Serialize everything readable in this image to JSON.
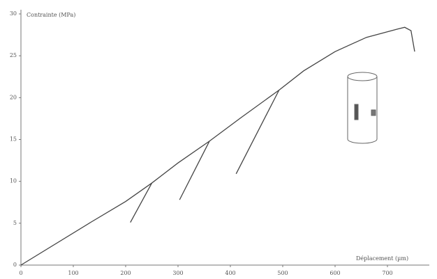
{
  "chart_data": {
    "type": "line",
    "y_label": "Contrainte (MPa)",
    "x_label": "Déplacement (µm)",
    "xlim": [
      0,
      780
    ],
    "ylim": [
      0,
      30
    ],
    "xticks": [
      0,
      100,
      200,
      300,
      400,
      500,
      600,
      700
    ],
    "yticks": [
      0,
      5,
      10,
      15,
      20,
      25,
      30
    ],
    "grid": false,
    "series": [
      {
        "color": "#444444",
        "x": [
          0,
          133,
          200,
          250,
          300,
          360,
          420,
          493,
          540,
          600,
          660,
          720,
          733,
          745,
          752
        ],
        "values": [
          0,
          5.1,
          7.6,
          9.8,
          12.2,
          14.8,
          17.6,
          20.9,
          23.2,
          25.5,
          27.2,
          28.2,
          28.4,
          28.0,
          25.5
        ]
      },
      {
        "color": "#444444",
        "x": [
          250,
          209
        ],
        "values": [
          9.8,
          5.1
        ]
      },
      {
        "color": "#444444",
        "x": [
          360,
          303
        ],
        "values": [
          14.8,
          7.8
        ]
      },
      {
        "color": "#444444",
        "x": [
          493,
          411
        ],
        "values": [
          20.9,
          10.9
        ]
      }
    ]
  }
}
